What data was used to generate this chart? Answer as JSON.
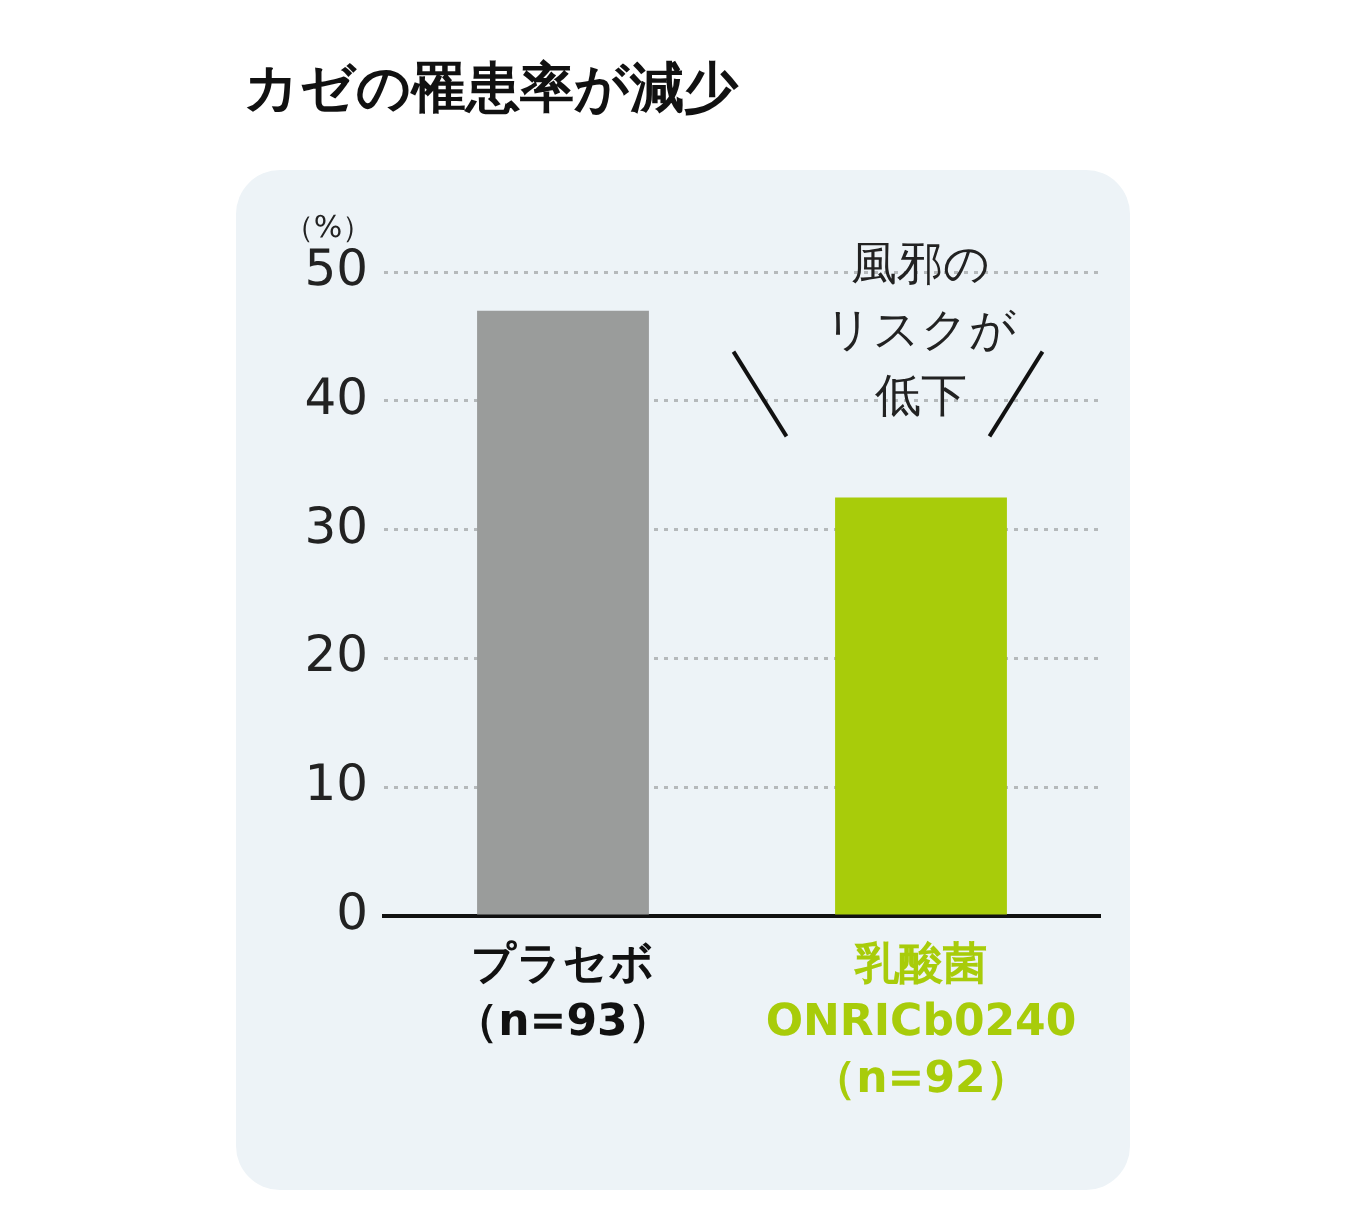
{
  "chart_data": {
    "type": "bar",
    "title": "カゼの罹患率が減少",
    "ylabel": "（%）",
    "categories": [
      "プラセボ（n=93）",
      "乳酸菌ONRICb0240（n=92）"
    ],
    "values": [
      47,
      32.5
    ],
    "colors": [
      "#9a9c9b",
      "#a8cc0a"
    ],
    "ylim": [
      0,
      50
    ],
    "yticks": [
      0,
      10,
      20,
      30,
      40,
      50
    ],
    "grid": "y",
    "annotations": [
      "風邪のリスクが低下"
    ]
  }
}
